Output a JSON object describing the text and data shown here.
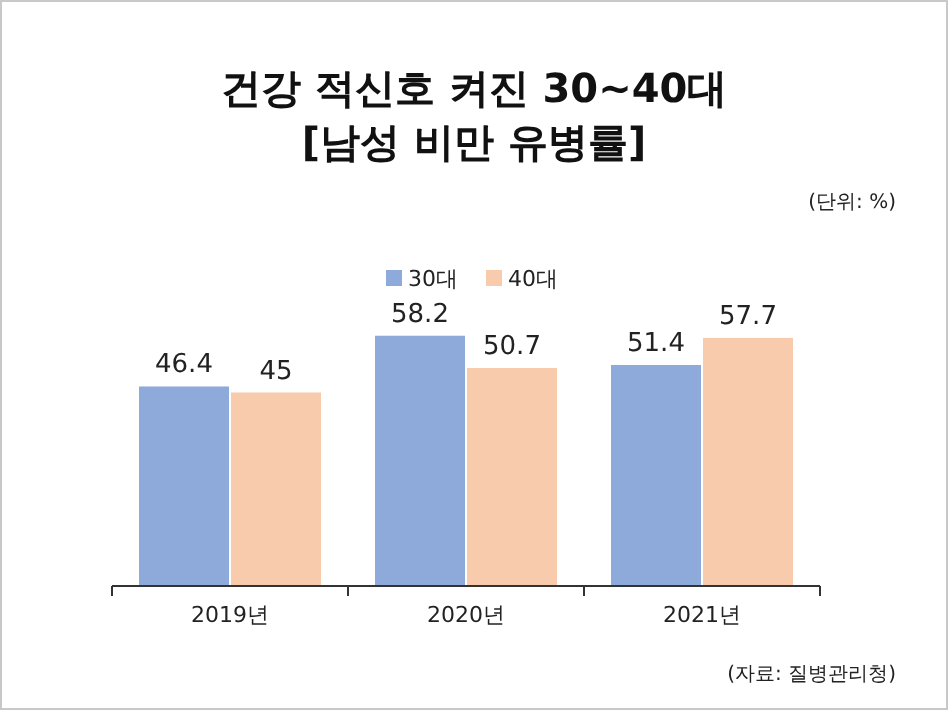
{
  "chart_data": {
    "type": "bar",
    "title": "건강 적신호 켜진 30~40대",
    "subtitle": "[남성 비만 유병률]",
    "categories": [
      "2019년",
      "2020년",
      "2021년"
    ],
    "series": [
      {
        "name": "30대",
        "color": "#8eaadb",
        "values": [
          46.4,
          58.2,
          51.4
        ]
      },
      {
        "name": "40대",
        "color": "#f8cbad",
        "values": [
          45,
          50.7,
          57.7
        ]
      }
    ],
    "data_labels": true,
    "legend": "top",
    "annotations": [
      "(단위: %)",
      "(자료: 질병관리청)"
    ]
  }
}
